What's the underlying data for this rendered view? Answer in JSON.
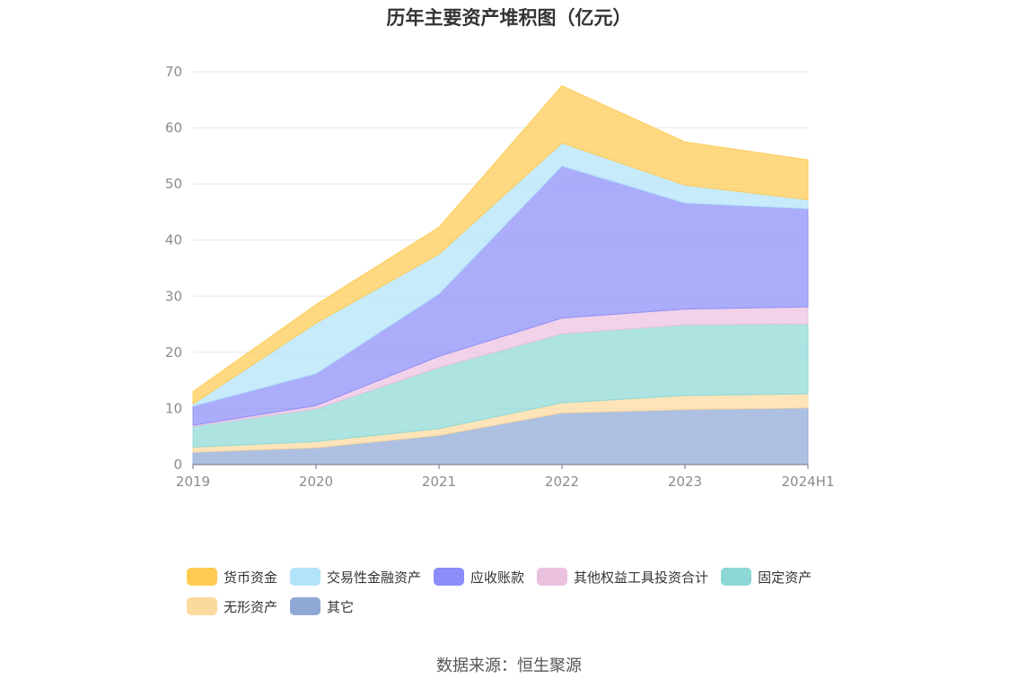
{
  "chart_data": {
    "type": "area",
    "stacked": true,
    "title": "历年主要资产堆积图（亿元）",
    "categories": [
      "2019",
      "2020",
      "2021",
      "2022",
      "2023",
      "2024H1"
    ],
    "ylim": [
      0,
      70
    ],
    "yticks": [
      0,
      10,
      20,
      30,
      40,
      50,
      60,
      70
    ],
    "grid": true,
    "legend_position": "bottom",
    "series": [
      {
        "name": "其它",
        "color": "#8fa8d6",
        "values": [
          2.2,
          3.0,
          5.2,
          9.2,
          9.8,
          10.1
        ]
      },
      {
        "name": "无形资产",
        "color": "#fcd99e",
        "values": [
          0.9,
          1.1,
          1.2,
          1.8,
          2.5,
          2.5
        ]
      },
      {
        "name": "固定资产",
        "color": "#8dd8d6",
        "values": [
          3.7,
          5.8,
          10.9,
          12.3,
          12.6,
          12.5
        ]
      },
      {
        "name": "其他权益工具投资合计",
        "color": "#ebc1e0",
        "values": [
          0.2,
          0.6,
          2.0,
          2.8,
          2.8,
          3.0
        ]
      },
      {
        "name": "应收账款",
        "color": "#8b8df8",
        "values": [
          3.4,
          5.7,
          11.1,
          27.1,
          18.9,
          17.5
        ]
      },
      {
        "name": "交易性金融资产",
        "color": "#b1e3f9",
        "values": [
          0.4,
          9.0,
          7.1,
          4.1,
          3.2,
          1.6
        ]
      },
      {
        "name": "货币资金",
        "color": "#fdcb52",
        "values": [
          2.2,
          3.3,
          4.8,
          10.2,
          7.7,
          7.1
        ]
      }
    ],
    "legend_order": [
      "货币资金",
      "交易性金融资产",
      "应收账款",
      "其他权益工具投资合计",
      "固定资产",
      "无形资产",
      "其它"
    ]
  },
  "source_text": "数据来源：恒生聚源"
}
